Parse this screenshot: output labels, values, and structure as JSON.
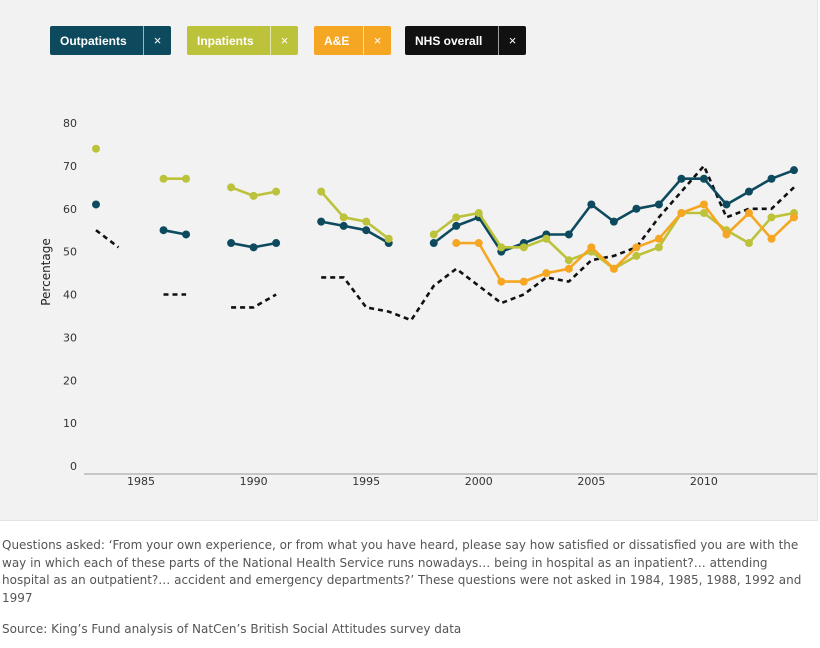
{
  "legend": [
    {
      "label": "Outpatients",
      "color": "#0e4a5e",
      "close": "×"
    },
    {
      "label": "Inpatients",
      "color": "#bcc23a",
      "close": "×"
    },
    {
      "label": "A&E",
      "color": "#f5a623",
      "close": "×"
    },
    {
      "label": "NHS overall",
      "color": "#111111",
      "close": "×"
    }
  ],
  "chart_data": {
    "type": "line",
    "ylabel": "Percentage",
    "xlabel": "",
    "ylim": [
      0,
      80
    ],
    "xlim": [
      1983,
      2014
    ],
    "yticks": [
      0,
      10,
      20,
      30,
      40,
      50,
      60,
      70,
      80
    ],
    "xticks": [
      1985,
      1990,
      1995,
      2000,
      2005,
      2010
    ],
    "grid": false,
    "series": [
      {
        "name": "NHS overall",
        "color": "#111111",
        "style": "dashed",
        "markers": false,
        "points": [
          [
            1983,
            55
          ],
          [
            1984,
            51
          ],
          null,
          [
            1986,
            40
          ],
          [
            1987,
            40
          ],
          null,
          [
            1989,
            37
          ],
          [
            1990,
            37
          ],
          [
            1991,
            40
          ],
          null,
          [
            1993,
            44
          ],
          [
            1994,
            44
          ],
          [
            1995,
            37
          ],
          [
            1996,
            36
          ],
          [
            1997,
            34
          ],
          [
            1998,
            42
          ],
          [
            1999,
            46
          ],
          [
            2000,
            42
          ],
          [
            2001,
            38
          ],
          [
            2002,
            40
          ],
          [
            2003,
            44
          ],
          [
            2004,
            43
          ],
          [
            2005,
            48
          ],
          [
            2006,
            49
          ],
          [
            2007,
            51
          ],
          [
            2008,
            58
          ],
          [
            2009,
            64
          ],
          [
            2010,
            70
          ],
          [
            2011,
            58
          ],
          [
            2012,
            60
          ],
          [
            2013,
            60
          ],
          [
            2014,
            65
          ]
        ]
      },
      {
        "name": "Outpatients",
        "color": "#0e4a5e",
        "style": "solid",
        "markers": true,
        "points": [
          [
            1983,
            61
          ],
          null,
          [
            1986,
            55
          ],
          [
            1987,
            54
          ],
          null,
          [
            1989,
            52
          ],
          [
            1990,
            51
          ],
          [
            1991,
            52
          ],
          null,
          [
            1993,
            57
          ],
          [
            1994,
            56
          ],
          [
            1995,
            55
          ],
          [
            1996,
            52
          ],
          null,
          [
            1998,
            52
          ],
          [
            1999,
            56
          ],
          [
            2000,
            58
          ],
          [
            2001,
            50
          ],
          [
            2002,
            52
          ],
          [
            2003,
            54
          ],
          [
            2004,
            54
          ],
          [
            2005,
            61
          ],
          [
            2006,
            57
          ],
          [
            2007,
            60
          ],
          [
            2008,
            61
          ],
          [
            2009,
            67
          ],
          [
            2010,
            67
          ],
          [
            2011,
            61
          ],
          [
            2012,
            64
          ],
          [
            2013,
            67
          ],
          [
            2014,
            69
          ]
        ]
      },
      {
        "name": "Inpatients",
        "color": "#bcc23a",
        "style": "solid",
        "markers": true,
        "points": [
          [
            1983,
            74
          ],
          null,
          [
            1986,
            67
          ],
          [
            1987,
            67
          ],
          null,
          [
            1989,
            65
          ],
          [
            1990,
            63
          ],
          [
            1991,
            64
          ],
          null,
          [
            1993,
            64
          ],
          [
            1994,
            58
          ],
          [
            1995,
            57
          ],
          [
            1996,
            53
          ],
          null,
          [
            1998,
            54
          ],
          [
            1999,
            58
          ],
          [
            2000,
            59
          ],
          [
            2001,
            51
          ],
          [
            2002,
            51
          ],
          [
            2003,
            53
          ],
          [
            2004,
            48
          ],
          [
            2005,
            50
          ],
          [
            2006,
            46
          ],
          [
            2007,
            49
          ],
          [
            2008,
            51
          ],
          [
            2009,
            59
          ],
          [
            2010,
            59
          ],
          [
            2011,
            55
          ],
          [
            2012,
            52
          ],
          [
            2013,
            58
          ],
          [
            2014,
            59
          ]
        ]
      },
      {
        "name": "A&E",
        "color": "#f5a623",
        "style": "solid",
        "markers": true,
        "points": [
          [
            1999,
            52
          ],
          [
            2000,
            52
          ],
          [
            2001,
            43
          ],
          [
            2002,
            43
          ],
          [
            2003,
            45
          ],
          [
            2004,
            46
          ],
          [
            2005,
            51
          ],
          [
            2006,
            46
          ],
          [
            2007,
            51
          ],
          [
            2008,
            53
          ],
          [
            2009,
            59
          ],
          [
            2010,
            61
          ],
          [
            2011,
            54
          ],
          [
            2012,
            59
          ],
          [
            2013,
            53
          ],
          [
            2014,
            58
          ]
        ]
      }
    ]
  },
  "footnote": "Questions asked: ‘From your own experience, or from what you have heard, please say how satisfied or dissatisfied you are with the way in which each of these parts of the National Health Service runs nowadays… being in hospital as an inpatient?… attending hospital as an outpatient?… accident and emergency departments?’ These questions were not asked in 1984, 1985, 1988, 1992 and 1997",
  "source": "Source: King’s Fund analysis of NatCen’s British Social Attitudes survey data"
}
